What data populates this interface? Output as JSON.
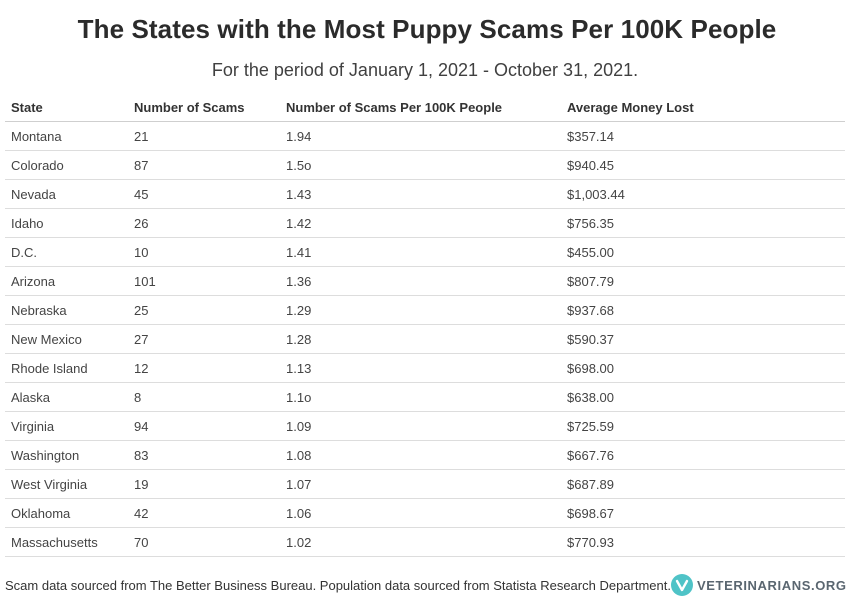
{
  "header": {
    "title": "The States with the Most Puppy Scams Per 100K People",
    "subtitle": "For the period of January 1, 2021 - October 31, 2021."
  },
  "chart_data": {
    "type": "table",
    "columns": [
      "State",
      "Number of Scams",
      "Number of Scams Per 100K People",
      "Average Money Lost"
    ],
    "rows": [
      [
        "Montana",
        "21",
        "1.94",
        "$357.14"
      ],
      [
        "Colorado",
        "87",
        "1.5o",
        "$940.45"
      ],
      [
        "Nevada",
        "45",
        "1.43",
        "$1,003.44"
      ],
      [
        "Idaho",
        "26",
        "1.42",
        "$756.35"
      ],
      [
        "D.C.",
        "10",
        "1.41",
        "$455.00"
      ],
      [
        "Arizona",
        "101",
        "1.36",
        "$807.79"
      ],
      [
        "Nebraska",
        "25",
        "1.29",
        "$937.68"
      ],
      [
        "New Mexico",
        "27",
        "1.28",
        "$590.37"
      ],
      [
        "Rhode Island",
        "12",
        "1.13",
        "$698.00"
      ],
      [
        "Alaska",
        "8",
        "1.1o",
        "$638.00"
      ],
      [
        "Virginia",
        "94",
        "1.09",
        "$725.59"
      ],
      [
        "Washington",
        "83",
        "1.08",
        "$667.76"
      ],
      [
        "West Virginia",
        "19",
        "1.07",
        "$687.89"
      ],
      [
        "Oklahoma",
        "42",
        "1.06",
        "$698.67"
      ],
      [
        "Massachusetts",
        "70",
        "1.02",
        "$770.93"
      ]
    ]
  },
  "footer": {
    "source_note": "Scam data sourced from The Better Business Bureau. Population data sourced from Statista Research Department.",
    "logo_text": "VETERINARIANS.ORG",
    "logo_icon": "veterinarians-logo-icon",
    "logo_color": "#4fc3c7"
  }
}
